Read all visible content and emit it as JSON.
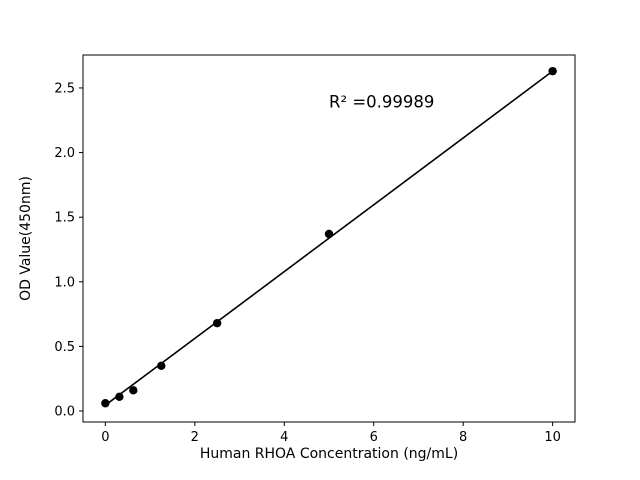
{
  "chart_data": {
    "type": "scatter",
    "title": "",
    "xlabel": "Human RHOA Concentration (ng/mL)",
    "ylabel": "OD Value(450nm)",
    "annotation": {
      "text": "R² =0.99989",
      "x": 5.0,
      "y": 2.35
    },
    "points": {
      "x": [
        0,
        0.313,
        0.625,
        1.25,
        2.5,
        5,
        10
      ],
      "y": [
        0.06,
        0.11,
        0.16,
        0.35,
        0.68,
        1.37,
        2.63
      ]
    },
    "fit_line": {
      "x": [
        0,
        10
      ],
      "y": [
        0.045,
        2.63
      ]
    },
    "xlim": [
      -0.5,
      10.5
    ],
    "ylim": [
      -0.085,
      2.755
    ],
    "xticks": [
      0,
      2,
      4,
      6,
      8,
      10
    ],
    "xtick_labels": [
      "0",
      "2",
      "4",
      "6",
      "8",
      "10"
    ],
    "yticks": [
      0.0,
      0.5,
      1.0,
      1.5,
      2.0,
      2.5
    ],
    "ytick_labels": [
      "0.0",
      "0.5",
      "1.0",
      "1.5",
      "2.0",
      "2.5"
    ],
    "grid": false,
    "legend": "none",
    "marker_color": "#000000",
    "line_color": "#000000",
    "background_color": "#ffffff"
  }
}
